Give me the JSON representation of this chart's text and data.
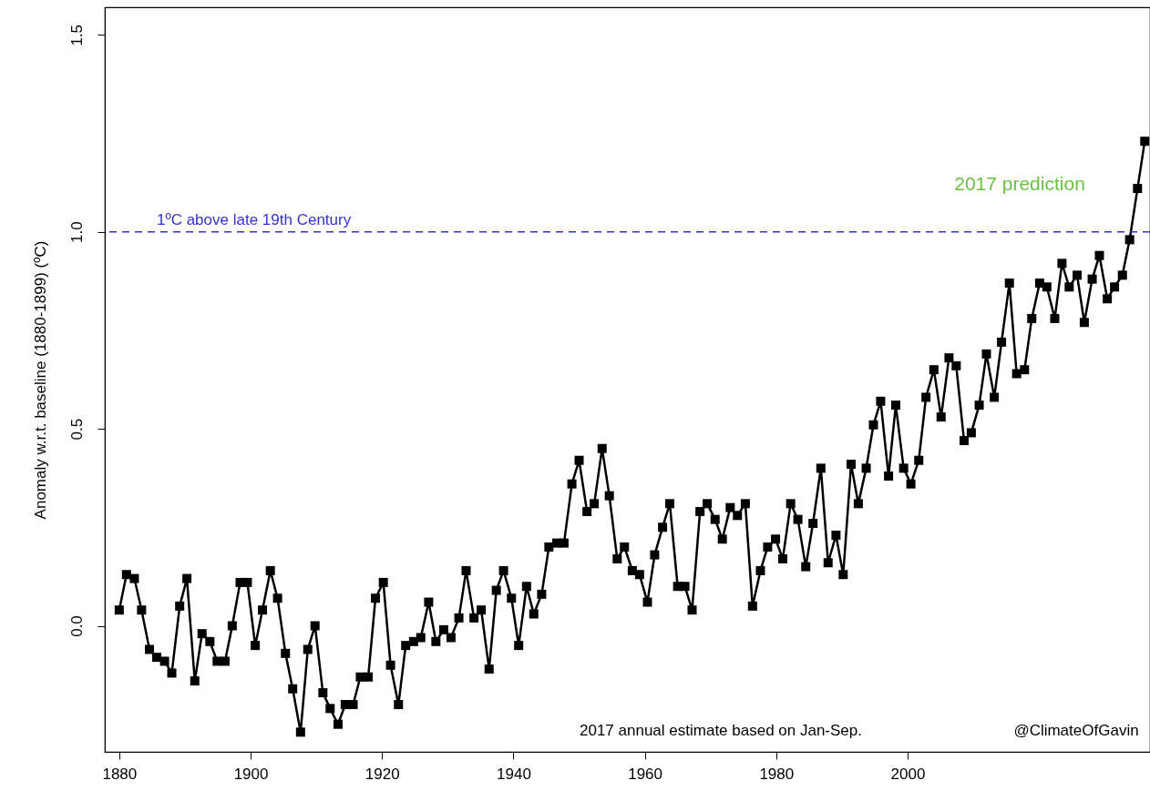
{
  "chart_data": {
    "type": "line",
    "ylabel": "Anomaly w.r.t. baseline (1880-1899) (ºC)",
    "x": [
      1880.0,
      1881.1,
      1882.3,
      1883.4,
      1884.6,
      1885.7,
      1886.9,
      1888.0,
      1889.2,
      1890.3,
      1891.5,
      1892.6,
      1893.8,
      1894.9,
      1896.1,
      1897.2,
      1898.4,
      1899.5,
      1900.7,
      1901.8,
      1903.0,
      1904.1,
      1905.3,
      1906.4,
      1907.6,
      1908.7,
      1909.8,
      1911.0,
      1912.1,
      1913.3,
      1914.4,
      1915.6,
      1916.7,
      1917.9,
      1919.0,
      1920.2,
      1921.3,
      1922.5,
      1923.6,
      1924.8,
      1925.9,
      1927.1,
      1928.2,
      1929.4,
      1930.5,
      1931.7,
      1932.8,
      1934.0,
      1935.1,
      1936.3,
      1937.4,
      1938.5,
      1939.7,
      1940.8,
      1942.0,
      1943.1,
      1944.3,
      1945.4,
      1946.6,
      1947.7,
      1948.9,
      1950.0,
      1951.2,
      1952.3,
      1953.5,
      1954.6,
      1955.8,
      1956.9,
      1958.1,
      1959.2,
      1960.4,
      1961.5,
      1962.7,
      1963.8,
      1965.0,
      1966.1,
      1967.2,
      1968.4,
      1969.5,
      1970.7,
      1971.8,
      1973.0,
      1974.1,
      1975.3,
      1976.4,
      1977.6,
      1978.7,
      1979.9,
      1981.0,
      1982.2,
      1983.3,
      1984.5,
      1985.6,
      1986.8,
      1987.9,
      1989.1,
      1990.2,
      1991.4,
      1992.5,
      1993.7,
      1994.8,
      1995.9,
      1997.1,
      1998.2,
      1999.4,
      2000.5,
      2001.7,
      2002.8,
      2004.0,
      2005.1,
      2006.3,
      2007.4,
      2008.6,
      2009.7,
      2010.9,
      2012.0,
      2013.2,
      2014.3,
      2015.5,
      2016.6,
      2017.8,
      2018.9,
      2020.1,
      2021.2,
      2022.4,
      2023.5,
      2024.6,
      2025.8,
      2026.9,
      2028.1,
      2029.2,
      2030.4,
      2031.5,
      2032.7,
      2033.8,
      2035.0,
      2036.1
    ],
    "series": [
      {
        "color": "#000000",
        "values": [
          0.04,
          0.13,
          0.12,
          0.04,
          -0.06,
          -0.08,
          -0.09,
          -0.12,
          0.05,
          0.12,
          -0.14,
          -0.02,
          -0.04,
          -0.09,
          -0.09,
          0.0,
          0.11,
          0.11,
          -0.05,
          0.04,
          0.14,
          0.07,
          -0.07,
          -0.16,
          -0.27,
          -0.06,
          0.0,
          -0.17,
          -0.21,
          -0.25,
          -0.2,
          -0.2,
          -0.13,
          -0.13,
          0.07,
          0.11,
          -0.1,
          -0.2,
          -0.05,
          -0.04,
          -0.03,
          0.06,
          -0.04,
          -0.01,
          -0.03,
          0.02,
          0.14,
          0.02,
          0.04,
          -0.11,
          0.09,
          0.14,
          0.07,
          -0.05,
          0.1,
          0.03,
          0.08,
          0.2,
          0.21,
          0.21,
          0.36,
          0.42,
          0.29,
          0.31,
          0.45,
          0.33,
          0.17,
          0.2,
          0.14,
          0.13,
          0.06,
          0.18,
          0.25,
          0.31,
          0.1,
          0.1,
          0.04,
          0.29,
          0.31,
          0.27,
          0.22,
          0.3,
          0.28,
          0.31,
          0.05,
          0.14,
          0.2,
          0.22,
          0.17,
          0.31,
          0.27,
          0.15,
          0.26,
          0.4,
          0.16,
          0.23,
          0.13,
          0.41,
          0.31,
          0.4,
          0.51,
          0.57,
          0.38,
          0.56,
          0.4,
          0.36,
          0.42,
          0.58,
          0.65,
          0.53,
          0.68,
          0.66,
          0.47,
          0.49,
          0.56,
          0.69,
          0.58,
          0.72,
          0.87,
          0.64,
          0.65,
          0.78,
          0.87,
          0.86,
          0.78,
          0.92,
          0.86,
          0.89,
          0.77,
          0.88,
          0.94,
          0.83,
          0.86,
          0.89,
          0.98,
          1.11,
          1.23
        ]
      }
    ],
    "xlim": [
      1877.8,
      2036.9
    ],
    "xticks": [
      1880,
      1900,
      1920,
      1940,
      1960,
      1980,
      2000
    ],
    "ylim": [
      -0.32,
      1.57
    ],
    "yticks": [
      {
        "value": 0,
        "label": "0.0"
      },
      {
        "value": 0.5,
        "label": "0.5"
      },
      {
        "value": 1,
        "label": "1.0"
      },
      {
        "value": 1.5,
        "label": "1.5"
      }
    ],
    "ref_lines": [
      {
        "axis": "y",
        "value": 1,
        "label": "1ºC above late 19th Century",
        "color": "#3333cc",
        "line_style": "dashed"
      }
    ],
    "annotations": [
      "2017 prediction",
      "2017 annual estimate based on Jan-Sep.",
      "@ClimateOfGavin"
    ],
    "marker": "square",
    "line_style": "solid",
    "grid": false
  }
}
